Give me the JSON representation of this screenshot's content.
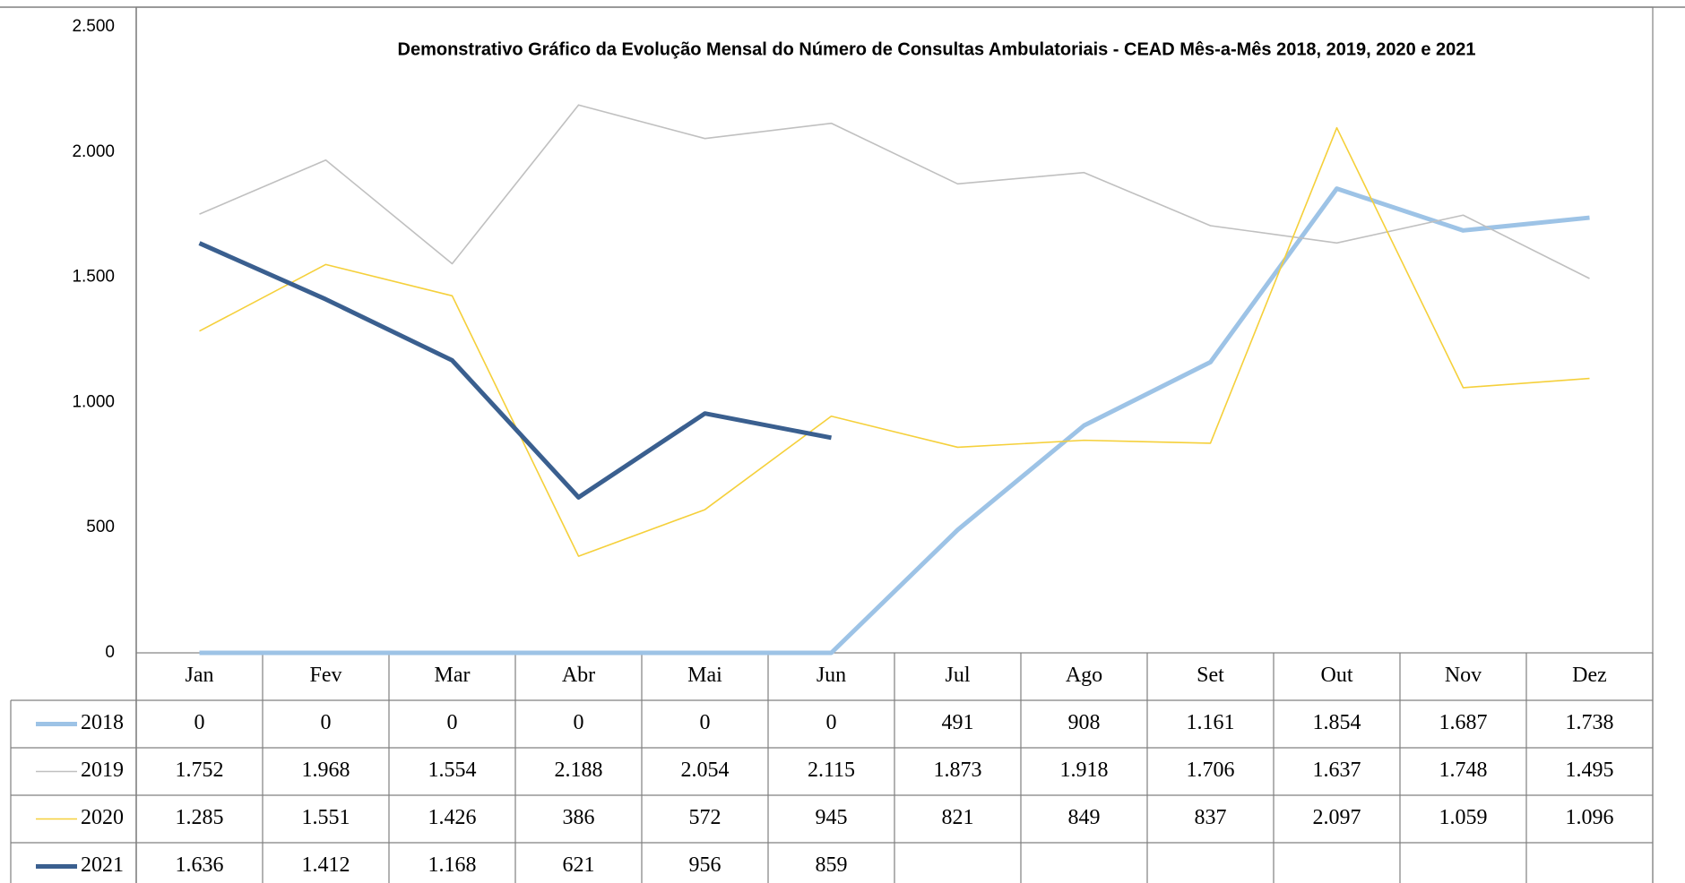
{
  "chart_data": {
    "type": "line",
    "title": "Demonstrativo Gráfico da Evolução Mensal do Número de Consultas Ambulatoriais - CEAD Mês-a-Mês 2018, 2019, 2020 e 2021",
    "categories": [
      "Jan",
      "Fev",
      "Mar",
      "Abr",
      "Mai",
      "Jun",
      "Jul",
      "Ago",
      "Set",
      "Out",
      "Nov",
      "Dez"
    ],
    "series": [
      {
        "name": "2018",
        "color": "#9dc3e6",
        "line_width": 5,
        "values": [
          0,
          0,
          0,
          0,
          0,
          0,
          491,
          908,
          1161,
          1854,
          1687,
          1738
        ],
        "value_labels": [
          "0",
          "0",
          "0",
          "0",
          "0",
          "0",
          "491",
          "908",
          "1.161",
          "1.854",
          "1.687",
          "1.738"
        ]
      },
      {
        "name": "2019",
        "color": "#c0c0c0",
        "line_width": 1.6,
        "values": [
          1752,
          1968,
          1554,
          2188,
          2054,
          2115,
          1873,
          1918,
          1706,
          1637,
          1748,
          1495
        ],
        "value_labels": [
          "1.752",
          "1.968",
          "1.554",
          "2.188",
          "2.054",
          "2.115",
          "1.873",
          "1.918",
          "1.706",
          "1.637",
          "1.748",
          "1.495"
        ]
      },
      {
        "name": "2020",
        "color": "#f5d03b",
        "line_width": 1.6,
        "values": [
          1285,
          1551,
          1426,
          386,
          572,
          945,
          821,
          849,
          837,
          2097,
          1059,
          1096
        ],
        "value_labels": [
          "1.285",
          "1.551",
          "1.426",
          "386",
          "572",
          "945",
          "821",
          "849",
          "837",
          "2.097",
          "1.059",
          "1.096"
        ]
      },
      {
        "name": "2021",
        "color": "#3a5f8f",
        "line_width": 5,
        "values": [
          1636,
          1412,
          1168,
          621,
          956,
          859,
          null,
          null,
          null,
          null,
          null,
          null
        ],
        "value_labels": [
          "1.636",
          "1.412",
          "1.168",
          "621",
          "956",
          "859",
          null,
          null,
          null,
          null,
          null,
          null
        ]
      }
    ],
    "ylim": [
      0,
      2500
    ],
    "yticks": [
      0,
      500,
      {
        "value": 1000,
        "label": "1.000"
      },
      {
        "value": 1500,
        "label": "1.500"
      },
      {
        "value": 2000,
        "label": "2.000"
      },
      {
        "value": 2500,
        "label": "2.500"
      }
    ],
    "grid": false
  }
}
